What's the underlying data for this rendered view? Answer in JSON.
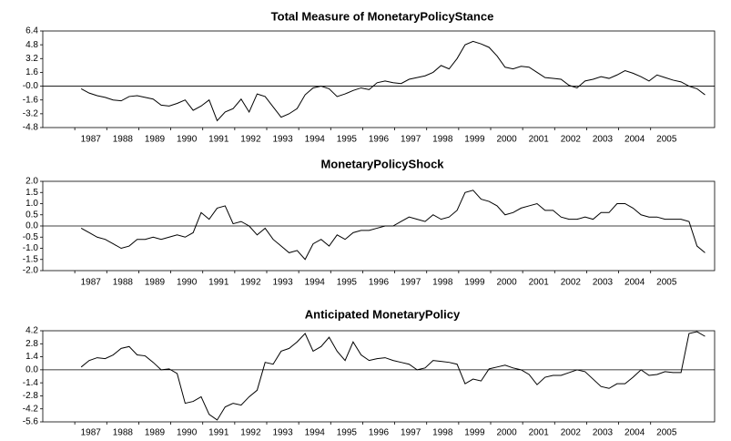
{
  "chart_data": [
    {
      "type": "line",
      "title": "Total Measure of MonetaryPolicyStance",
      "color": "#000000",
      "xlim": [
        1986,
        2007
      ],
      "xticks": [
        1987,
        1988,
        1989,
        1990,
        1991,
        1992,
        1993,
        1994,
        1995,
        1996,
        1997,
        1998,
        1999,
        2000,
        2001,
        2002,
        2003,
        2004,
        2005
      ],
      "ylim": [
        -4.8,
        6.4
      ],
      "yticks": [
        -4.8,
        -3.2,
        -1.6,
        {
          "value": 0,
          "label": "-0.0"
        },
        1.6,
        3.2,
        4.8,
        6.4
      ],
      "x": [
        1987.2,
        1987.45,
        1987.7,
        1987.95,
        1988.2,
        1988.45,
        1988.7,
        1988.95,
        1989.2,
        1989.45,
        1989.7,
        1989.95,
        1990.2,
        1990.45,
        1990.7,
        1990.95,
        1991.2,
        1991.45,
        1991.7,
        1991.95,
        1992.2,
        1992.45,
        1992.7,
        1992.95,
        1993.2,
        1993.45,
        1993.7,
        1993.95,
        1994.2,
        1994.45,
        1994.7,
        1994.95,
        1995.2,
        1995.45,
        1995.7,
        1995.95,
        1996.2,
        1996.45,
        1996.7,
        1996.95,
        1997.2,
        1997.45,
        1997.7,
        1997.95,
        1998.2,
        1998.45,
        1998.7,
        1998.95,
        1999.2,
        1999.45,
        1999.7,
        1999.95,
        2000.2,
        2000.45,
        2000.7,
        2000.95,
        2001.2,
        2001.45,
        2001.7,
        2001.95,
        2002.2,
        2002.45,
        2002.7,
        2002.95,
        2003.2,
        2003.45,
        2003.7,
        2003.95,
        2004.2,
        2004.45,
        2004.7,
        2004.95,
        2005.2,
        2005.45,
        2005.7,
        2005.95,
        2006.2,
        2006.45,
        2006.7
      ],
      "values": [
        -0.3,
        -0.8,
        -1.1,
        -1.3,
        -1.6,
        -1.7,
        -1.2,
        -1.1,
        -1.3,
        -1.5,
        -2.2,
        -2.3,
        -2.0,
        -1.6,
        -2.8,
        -2.3,
        -1.6,
        -4.0,
        -3.0,
        -2.6,
        -1.5,
        -3.0,
        -0.9,
        -1.2,
        -2.4,
        -3.6,
        -3.2,
        -2.6,
        -1.0,
        -0.2,
        0.0,
        -0.3,
        -1.2,
        -0.9,
        -0.5,
        -0.2,
        -0.4,
        0.4,
        0.6,
        0.4,
        0.3,
        0.8,
        1.0,
        1.2,
        1.6,
        2.4,
        2.0,
        3.2,
        4.8,
        5.2,
        4.9,
        4.5,
        3.5,
        2.2,
        2.0,
        2.3,
        2.2,
        1.6,
        1.0,
        0.9,
        0.8,
        0.1,
        -0.2,
        0.6,
        0.8,
        1.1,
        0.9,
        1.3,
        1.8,
        1.5,
        1.1,
        0.6,
        1.3,
        1.0,
        0.7,
        0.5,
        0.0,
        -0.3,
        -1.0
      ]
    },
    {
      "type": "line",
      "title": "MonetaryPolicyShock",
      "color": "#000000",
      "xlim": [
        1986,
        2007
      ],
      "xticks": [
        1987,
        1988,
        1989,
        1990,
        1991,
        1992,
        1993,
        1994,
        1995,
        1996,
        1997,
        1998,
        1999,
        2000,
        2001,
        2002,
        2003,
        2004,
        2005
      ],
      "ylim": [
        -2,
        2
      ],
      "yticks": [
        {
          "value": -2,
          "label": "-2.0"
        },
        -1.5,
        {
          "value": -1,
          "label": "-1.0"
        },
        -0.5,
        {
          "value": 0,
          "label": "0.0"
        },
        0.5,
        {
          "value": 1,
          "label": "1.0"
        },
        1.5,
        {
          "value": 2,
          "label": "2.0"
        }
      ],
      "x": [
        1987.2,
        1987.45,
        1987.7,
        1987.95,
        1988.2,
        1988.45,
        1988.7,
        1988.95,
        1989.2,
        1989.45,
        1989.7,
        1989.95,
        1990.2,
        1990.45,
        1990.7,
        1990.95,
        1991.2,
        1991.45,
        1991.7,
        1991.95,
        1992.2,
        1992.45,
        1992.7,
        1992.95,
        1993.2,
        1993.45,
        1993.7,
        1993.95,
        1994.2,
        1994.45,
        1994.7,
        1994.95,
        1995.2,
        1995.45,
        1995.7,
        1995.95,
        1996.2,
        1996.45,
        1996.7,
        1996.95,
        1997.2,
        1997.45,
        1997.7,
        1997.95,
        1998.2,
        1998.45,
        1998.7,
        1998.95,
        1999.2,
        1999.45,
        1999.7,
        1999.95,
        2000.2,
        2000.45,
        2000.7,
        2000.95,
        2001.2,
        2001.45,
        2001.7,
        2001.95,
        2002.2,
        2002.45,
        2002.7,
        2002.95,
        2003.2,
        2003.45,
        2003.7,
        2003.95,
        2004.2,
        2004.45,
        2004.7,
        2004.95,
        2005.2,
        2005.45,
        2005.7,
        2005.95,
        2006.2,
        2006.45,
        2006.7
      ],
      "values": [
        -0.1,
        -0.3,
        -0.5,
        -0.6,
        -0.8,
        -1.0,
        -0.9,
        -0.6,
        -0.6,
        -0.5,
        -0.6,
        -0.5,
        -0.4,
        -0.5,
        -0.3,
        0.6,
        0.3,
        0.8,
        0.9,
        0.1,
        0.2,
        0.0,
        -0.4,
        -0.1,
        -0.6,
        -0.9,
        -1.2,
        -1.1,
        -1.5,
        -0.8,
        -0.6,
        -0.9,
        -0.4,
        -0.6,
        -0.3,
        -0.2,
        -0.2,
        -0.1,
        0.0,
        0.0,
        0.2,
        0.4,
        0.3,
        0.2,
        0.5,
        0.3,
        0.4,
        0.7,
        1.5,
        1.6,
        1.2,
        1.1,
        0.9,
        0.5,
        0.6,
        0.8,
        0.9,
        1.0,
        0.7,
        0.7,
        0.4,
        0.3,
        0.3,
        0.4,
        0.3,
        0.6,
        0.6,
        1.0,
        1.0,
        0.8,
        0.5,
        0.4,
        0.4,
        0.3,
        0.3,
        0.3,
        0.2,
        -0.9,
        -1.2
      ]
    },
    {
      "type": "line",
      "title": "Anticipated MonetaryPolicy",
      "color": "#000000",
      "xlim": [
        1986,
        2007
      ],
      "xticks": [
        1987,
        1988,
        1989,
        1990,
        1991,
        1992,
        1993,
        1994,
        1995,
        1996,
        1997,
        1998,
        1999,
        2000,
        2001,
        2002,
        2003,
        2004,
        2005
      ],
      "ylim": [
        -5.6,
        4.2
      ],
      "yticks": [
        -5.6,
        -4.2,
        -2.8,
        -1.4,
        {
          "value": 0,
          "label": "0.0"
        },
        1.4,
        2.8,
        4.2
      ],
      "x": [
        1987.2,
        1987.45,
        1987.7,
        1987.95,
        1988.2,
        1988.45,
        1988.7,
        1988.95,
        1989.2,
        1989.45,
        1989.7,
        1989.95,
        1990.2,
        1990.45,
        1990.7,
        1990.95,
        1991.2,
        1991.45,
        1991.7,
        1991.95,
        1992.2,
        1992.45,
        1992.7,
        1992.95,
        1993.2,
        1993.45,
        1993.7,
        1993.95,
        1994.2,
        1994.45,
        1994.7,
        1994.95,
        1995.2,
        1995.45,
        1995.7,
        1995.95,
        1996.2,
        1996.45,
        1996.7,
        1996.95,
        1997.2,
        1997.45,
        1997.7,
        1997.95,
        1998.2,
        1998.45,
        1998.7,
        1998.95,
        1999.2,
        1999.45,
        1999.7,
        1999.95,
        2000.2,
        2000.45,
        2000.7,
        2000.95,
        2001.2,
        2001.45,
        2001.7,
        2001.95,
        2002.2,
        2002.45,
        2002.7,
        2002.95,
        2003.2,
        2003.45,
        2003.7,
        2003.95,
        2004.2,
        2004.45,
        2004.7,
        2004.95,
        2005.2,
        2005.45,
        2005.7,
        2005.95,
        2006.2,
        2006.45,
        2006.7
      ],
      "values": [
        0.3,
        1.0,
        1.3,
        1.2,
        1.6,
        2.3,
        2.5,
        1.6,
        1.5,
        0.8,
        0.0,
        0.1,
        -0.4,
        -3.6,
        -3.4,
        -2.9,
        -4.8,
        -5.4,
        -4.0,
        -3.6,
        -3.8,
        -2.9,
        -2.2,
        0.8,
        0.6,
        2.0,
        2.3,
        3.0,
        3.9,
        2.0,
        2.5,
        3.5,
        2.0,
        1.0,
        3.0,
        1.6,
        1.0,
        1.2,
        1.3,
        1.0,
        0.8,
        0.6,
        0.0,
        0.2,
        1.0,
        0.9,
        0.8,
        0.6,
        -1.5,
        -1.0,
        -1.2,
        0.1,
        0.3,
        0.5,
        0.2,
        0.0,
        -0.5,
        -1.6,
        -0.8,
        -0.6,
        -0.6,
        -0.3,
        0.0,
        -0.2,
        -1.0,
        -1.8,
        -2.0,
        -1.5,
        -1.5,
        -0.8,
        0.0,
        -0.6,
        -0.5,
        -0.2,
        -0.3,
        -0.3,
        3.9,
        4.1,
        3.6
      ]
    }
  ]
}
